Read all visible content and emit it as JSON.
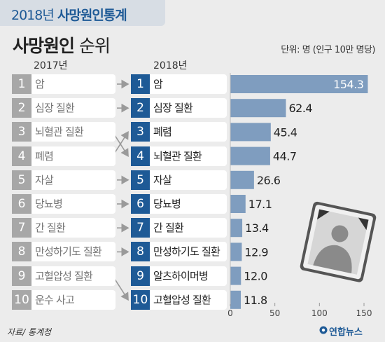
{
  "header": {
    "year": "2018년",
    "title": "사망원인통계",
    "main_title_bold": "사망원인",
    "main_title_rest": "순위",
    "unit": "단위: 명 (인구 10만 명당)",
    "left_year": "2017년",
    "right_year": "2018년"
  },
  "footer": {
    "source": "자료/ 통계청",
    "logo": "연합뉴스"
  },
  "ranking_2017": [
    {
      "rank": "1",
      "label": "암"
    },
    {
      "rank": "2",
      "label": "심장 질환"
    },
    {
      "rank": "3",
      "label": "뇌혈관 질환"
    },
    {
      "rank": "4",
      "label": "폐렴"
    },
    {
      "rank": "5",
      "label": "자살"
    },
    {
      "rank": "6",
      "label": "당뇨병"
    },
    {
      "rank": "7",
      "label": "간 질환"
    },
    {
      "rank": "8",
      "label": "만성하기도 질환"
    },
    {
      "rank": "9",
      "label": "고혈압성 질환"
    },
    {
      "rank": "10",
      "label": "운수 사고"
    }
  ],
  "ranking_2018": [
    {
      "rank": "1",
      "label": "암"
    },
    {
      "rank": "2",
      "label": "심장 질환"
    },
    {
      "rank": "3",
      "label": "폐렴"
    },
    {
      "rank": "4",
      "label": "뇌혈관 질환"
    },
    {
      "rank": "5",
      "label": "자살"
    },
    {
      "rank": "6",
      "label": "당뇨병"
    },
    {
      "rank": "7",
      "label": "간 질환"
    },
    {
      "rank": "8",
      "label": "만성하기도 질환"
    },
    {
      "rank": "9",
      "label": "알츠하이머병"
    },
    {
      "rank": "10",
      "label": "고혈압성 질환"
    }
  ],
  "chart_data": {
    "type": "bar",
    "orientation": "horizontal",
    "categories": [
      "암",
      "심장 질환",
      "폐렴",
      "뇌혈관 질환",
      "자살",
      "당뇨병",
      "간 질환",
      "만성하기도 질환",
      "알츠하이머병",
      "고혈압성 질환"
    ],
    "values": [
      154.3,
      62.4,
      45.4,
      44.7,
      26.6,
      17.1,
      13.4,
      12.9,
      12.0,
      11.8
    ],
    "value_labels": [
      "154.3",
      "62.4",
      "45.4",
      "44.7",
      "26.6",
      "17.1",
      "13.4",
      "12.9",
      "12.0",
      "11.8"
    ],
    "xlim": [
      0,
      150
    ],
    "xticks": [
      "0",
      "50",
      "100",
      "150"
    ],
    "bar_color": "#7f9dbf",
    "grid": false
  },
  "colors": {
    "accent": "#1e5a96",
    "gray": "#a7a7a7",
    "bar": "#7f9dbf"
  }
}
